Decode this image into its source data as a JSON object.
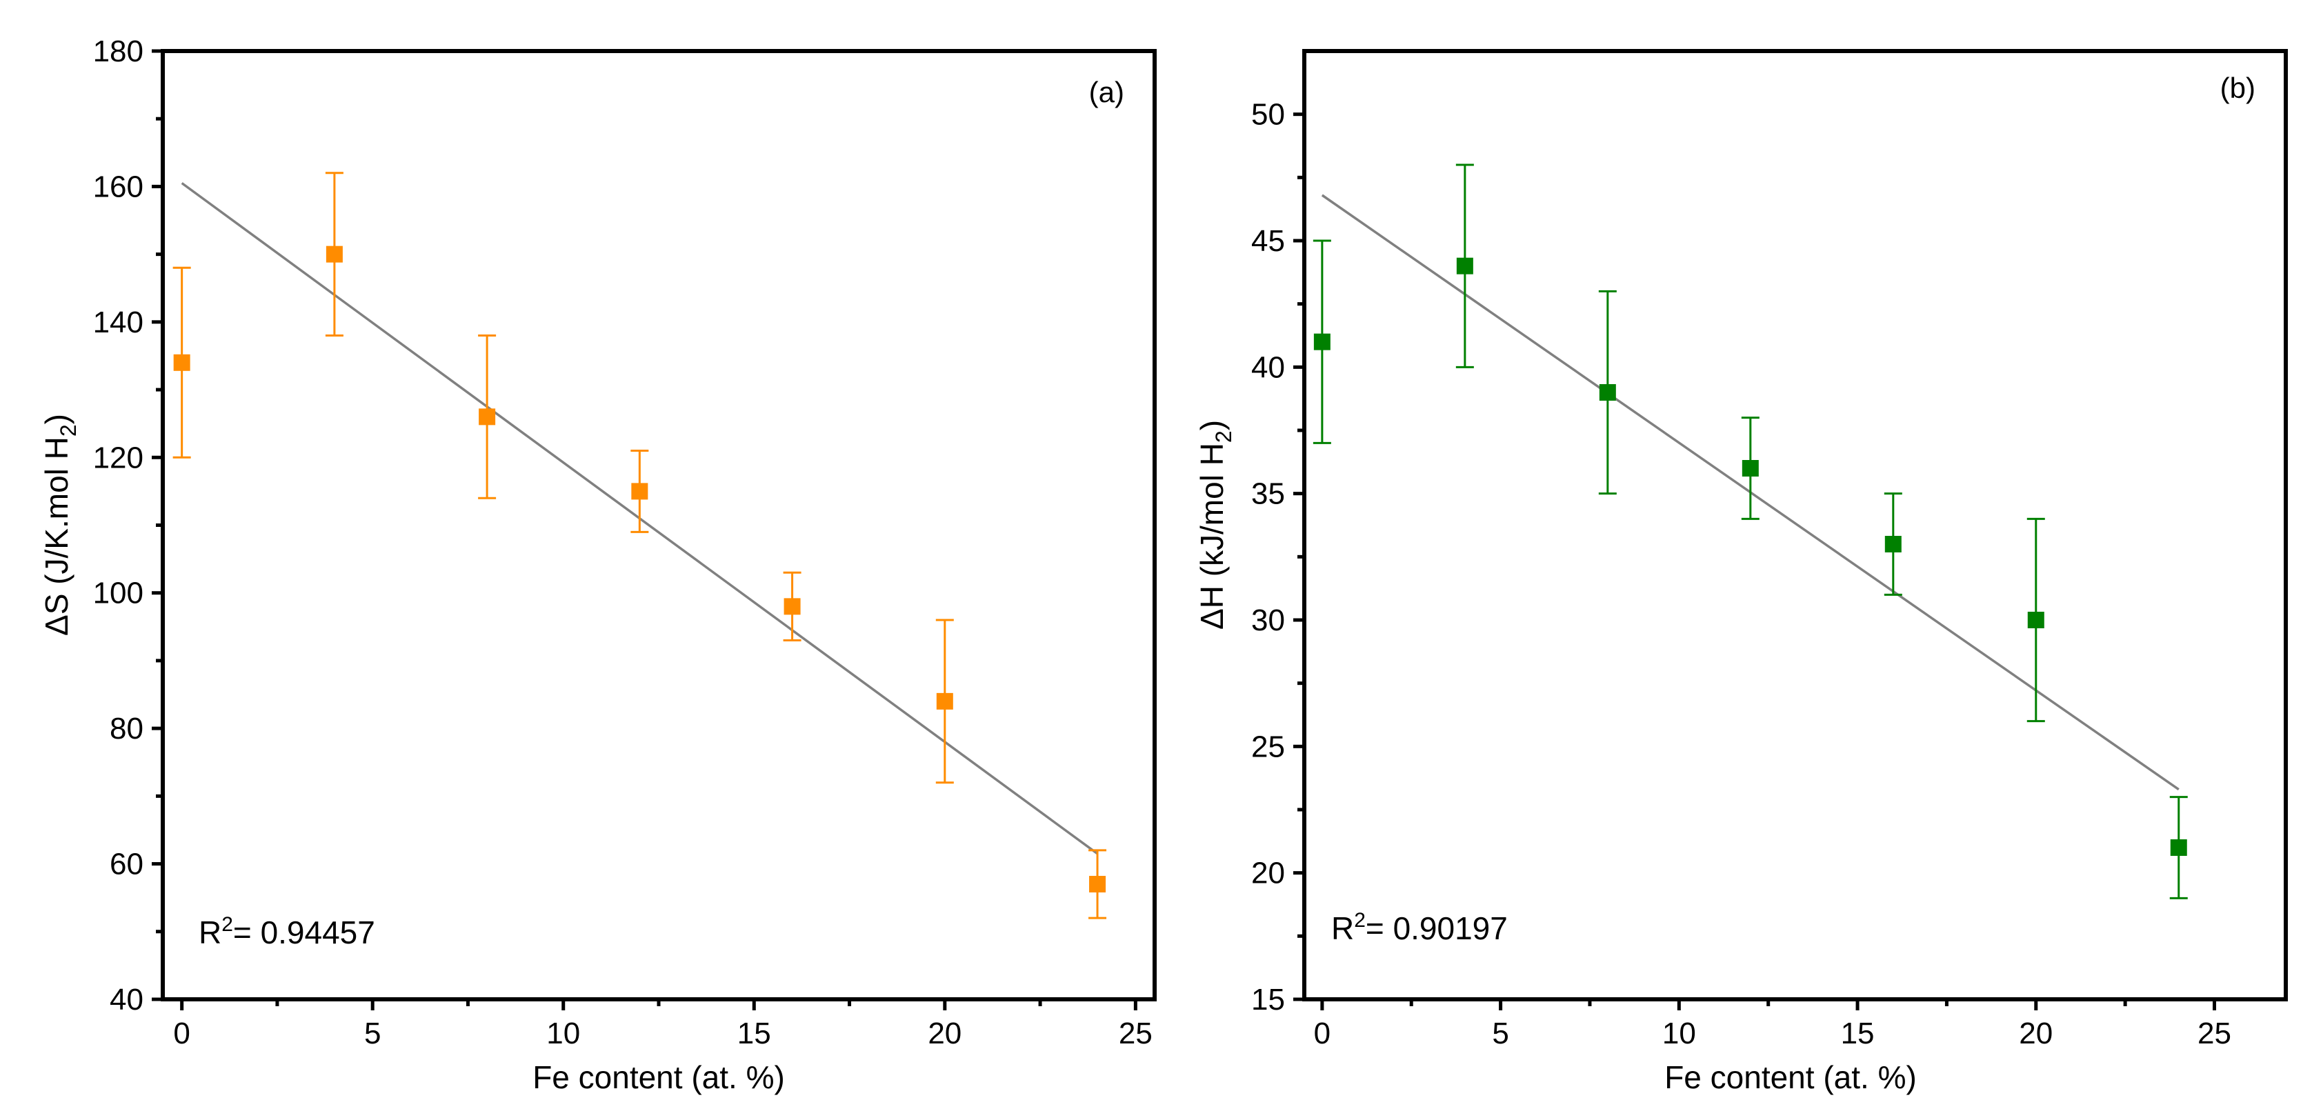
{
  "chart_data": [
    {
      "type": "scatter",
      "panel_label": "(a)",
      "title": "",
      "xlabel": "Fe content (at. %)",
      "ylabel_main": "ΔS (J/K.mol H",
      "ylabel_sub": "2",
      "ylabel_close": ")",
      "xlim": [
        -0.5,
        25.5
      ],
      "ylim": [
        40,
        180
      ],
      "xticks": [
        0,
        5,
        10,
        15,
        20,
        25
      ],
      "yticks": [
        40,
        60,
        80,
        100,
        120,
        140,
        160,
        180
      ],
      "xtick_labels": [
        "0",
        "5",
        "10",
        "15",
        "20",
        "25"
      ],
      "ytick_labels": [
        "40",
        "60",
        "80",
        "100",
        "120",
        "140",
        "160",
        "180"
      ],
      "color": "#ff8c00",
      "fit_color": "#808080",
      "r2_prefix": "R",
      "r2_sup": "2",
      "r2_value": "= 0.94457",
      "x": [
        0,
        4,
        8,
        12,
        16,
        20,
        24
      ],
      "y": [
        134,
        150,
        126,
        115,
        98,
        84,
        57
      ],
      "err_low": [
        120,
        138,
        114,
        109,
        93,
        72,
        52
      ],
      "err_high": [
        148,
        162,
        138,
        121,
        103,
        96,
        62
      ],
      "fit_line": {
        "x": [
          0,
          24
        ],
        "y": [
          160.5,
          61.5
        ]
      }
    },
    {
      "type": "scatter",
      "panel_label": "(b)",
      "title": "",
      "xlabel": "Fe content (at. %)",
      "ylabel_main": "ΔH (kJ/mol H",
      "ylabel_sub": "2",
      "ylabel_close": ")",
      "xlim": [
        -0.5,
        27
      ],
      "ylim": [
        15,
        52.5
      ],
      "xticks": [
        0,
        5,
        10,
        15,
        20,
        25
      ],
      "yticks": [
        15,
        20,
        25,
        30,
        35,
        40,
        45,
        50
      ],
      "xtick_labels": [
        "0",
        "5",
        "10",
        "15",
        "20",
        "25"
      ],
      "ytick_labels": [
        "15",
        "20",
        "25",
        "30",
        "35",
        "40",
        "45",
        "50"
      ],
      "color": "#008000",
      "fit_color": "#808080",
      "r2_prefix": "R",
      "r2_sup": "2",
      "r2_value": "= 0.90197",
      "x": [
        0,
        4,
        8,
        12,
        16,
        20,
        24
      ],
      "y": [
        41,
        44,
        39,
        36,
        33,
        30,
        21
      ],
      "err_low": [
        37,
        40,
        35,
        34,
        31,
        26,
        19
      ],
      "err_high": [
        45,
        48,
        43,
        38,
        35,
        34,
        23
      ],
      "fit_line": {
        "x": [
          0,
          24
        ],
        "y": [
          46.8,
          23.3
        ]
      }
    }
  ]
}
